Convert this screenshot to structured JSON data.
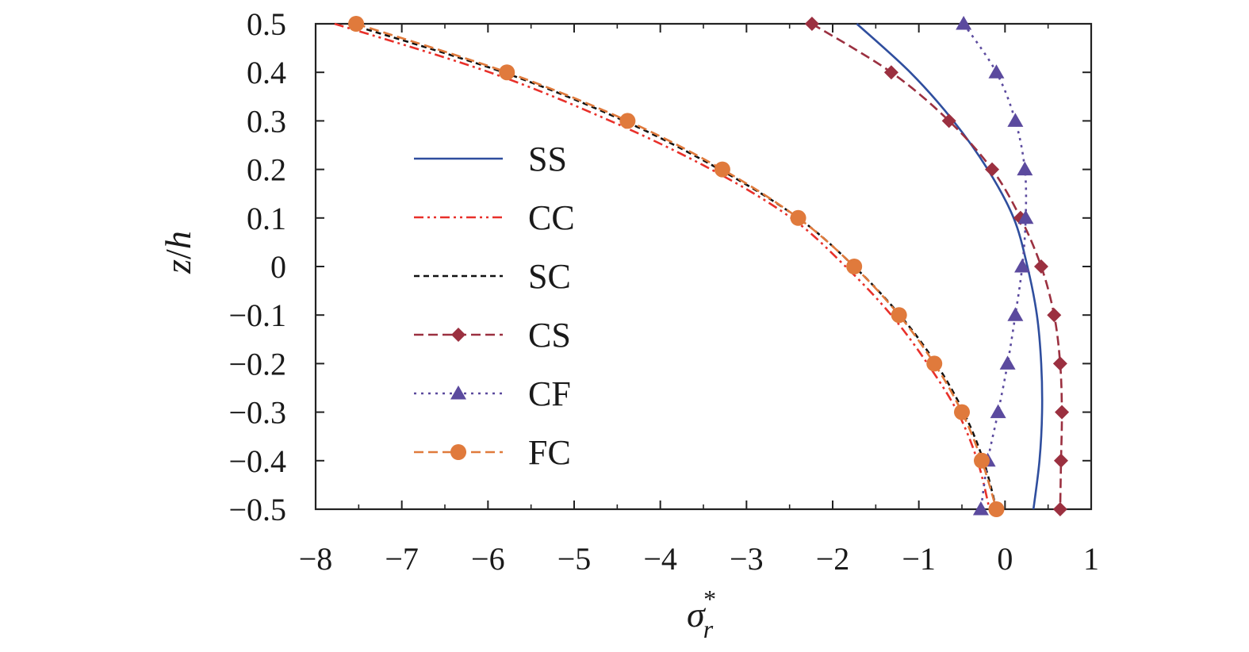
{
  "chart_data": {
    "type": "line",
    "title": "",
    "xlabel": "σ",
    "xlabel_sub": "r",
    "xlabel_sup": "*",
    "ylabel_z": "z",
    "ylabel_slash": "/",
    "ylabel_h": "h",
    "xlim": [
      -8,
      1
    ],
    "ylim": [
      -0.5,
      0.5
    ],
    "x_ticks": [
      "−8",
      "−7",
      "−6",
      "−5",
      "−4",
      "−3",
      "−2",
      "−1",
      "0",
      "1"
    ],
    "x_tick_values": [
      -8,
      -7,
      -6,
      -5,
      -4,
      -3,
      -2,
      -1,
      0,
      1
    ],
    "y_ticks": [
      "0.5",
      "0.4",
      "0.3",
      "0.2",
      "0.1",
      "0",
      "−0.1",
      "−0.2",
      "−0.3",
      "−0.4",
      "−0.5"
    ],
    "y_tick_values": [
      0.5,
      0.4,
      0.3,
      0.2,
      0.1,
      0,
      -0.1,
      -0.2,
      -0.3,
      -0.4,
      -0.5
    ],
    "grid": false,
    "legend_position": "center-left",
    "series": [
      {
        "name": "SS",
        "color": "#2f4e9e",
        "dash": "",
        "marker": "none",
        "points": [
          [
            -1.72,
            0.5
          ],
          [
            -1.1,
            0.4
          ],
          [
            -0.6,
            0.3
          ],
          [
            -0.2,
            0.2
          ],
          [
            0.1,
            0.1
          ],
          [
            0.26,
            0.0
          ],
          [
            0.37,
            -0.1
          ],
          [
            0.42,
            -0.2
          ],
          [
            0.43,
            -0.3
          ],
          [
            0.4,
            -0.4
          ],
          [
            0.33,
            -0.5
          ]
        ]
      },
      {
        "name": "CC",
        "color": "#e8302a",
        "dash": "12,5,3,5,3,5",
        "marker": "none",
        "points": [
          [
            -7.78,
            0.5
          ],
          [
            -5.98,
            0.4
          ],
          [
            -4.58,
            0.3
          ],
          [
            -3.41,
            0.2
          ],
          [
            -2.48,
            0.1
          ],
          [
            -1.85,
            0.0
          ],
          [
            -1.32,
            -0.1
          ],
          [
            -0.9,
            -0.2
          ],
          [
            -0.55,
            -0.3
          ],
          [
            -0.32,
            -0.4
          ],
          [
            -0.18,
            -0.5
          ]
        ]
      },
      {
        "name": "SC",
        "color": "#111111",
        "dash": "7,5",
        "marker": "none",
        "points": [
          [
            -7.62,
            0.5
          ],
          [
            -5.82,
            0.4
          ],
          [
            -4.42,
            0.3
          ],
          [
            -3.31,
            0.2
          ],
          [
            -2.4,
            0.1
          ],
          [
            -1.75,
            0.0
          ],
          [
            -1.22,
            -0.1
          ],
          [
            -0.8,
            -0.2
          ],
          [
            -0.48,
            -0.3
          ],
          [
            -0.25,
            -0.4
          ],
          [
            -0.1,
            -0.5
          ]
        ]
      },
      {
        "name": "CS",
        "color": "#9b3040",
        "dash": "12,6",
        "marker": "diamond",
        "points": [
          [
            -2.24,
            0.5
          ],
          [
            -1.32,
            0.4
          ],
          [
            -0.65,
            0.3
          ],
          [
            -0.15,
            0.2
          ],
          [
            0.18,
            0.1
          ],
          [
            0.42,
            0.0
          ],
          [
            0.57,
            -0.1
          ],
          [
            0.64,
            -0.2
          ],
          [
            0.66,
            -0.3
          ],
          [
            0.65,
            -0.4
          ],
          [
            0.64,
            -0.5
          ]
        ]
      },
      {
        "name": "CF",
        "color": "#5b4a9e",
        "dash": "3,6",
        "marker": "triangle",
        "points": [
          [
            -0.48,
            0.5
          ],
          [
            -0.1,
            0.4
          ],
          [
            0.12,
            0.3
          ],
          [
            0.23,
            0.2
          ],
          [
            0.24,
            0.1
          ],
          [
            0.2,
            0.0
          ],
          [
            0.12,
            -0.1
          ],
          [
            0.03,
            -0.2
          ],
          [
            -0.08,
            -0.3
          ],
          [
            -0.2,
            -0.4
          ],
          [
            -0.28,
            -0.5
          ]
        ]
      },
      {
        "name": "FC",
        "color": "#e07a3c",
        "dash": "12,6",
        "marker": "circle",
        "points": [
          [
            -7.53,
            0.5
          ],
          [
            -5.78,
            0.4
          ],
          [
            -4.38,
            0.3
          ],
          [
            -3.28,
            0.2
          ],
          [
            -2.4,
            0.1
          ],
          [
            -1.75,
            0.0
          ],
          [
            -1.23,
            -0.1
          ],
          [
            -0.82,
            -0.2
          ],
          [
            -0.5,
            -0.3
          ],
          [
            -0.27,
            -0.4
          ],
          [
            -0.1,
            -0.5
          ]
        ]
      }
    ]
  }
}
